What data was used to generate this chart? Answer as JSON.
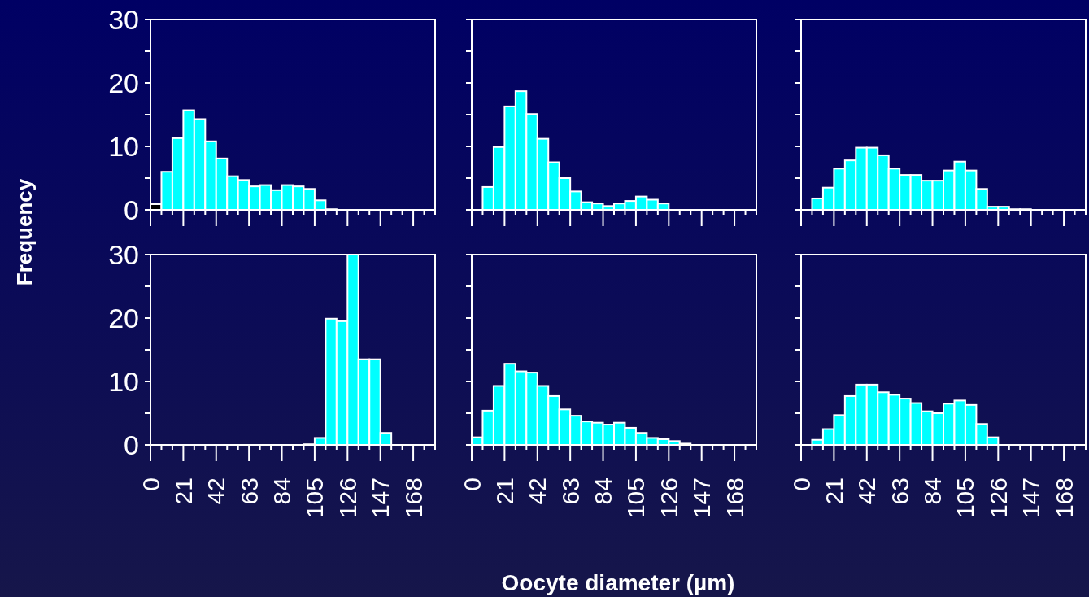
{
  "chart_data": [
    {
      "type": "histogram",
      "ylabel": "Frequency",
      "bins": [
        0,
        7,
        14,
        21,
        28,
        35,
        42,
        49,
        56,
        63,
        70,
        77,
        84,
        91,
        98,
        105,
        112,
        119,
        126,
        133,
        140,
        147,
        154,
        161,
        168,
        175,
        182
      ],
      "values": [
        0.9,
        6.0,
        11.3,
        15.7,
        14.3,
        10.8,
        8.1,
        5.3,
        4.7,
        3.7,
        3.9,
        3.1,
        3.9,
        3.7,
        3.3,
        1.5,
        0.1,
        0,
        0,
        0,
        0,
        0,
        0,
        0,
        0,
        0
      ],
      "colors": [
        "#000000",
        "#00ffff",
        "#00ffff",
        "#00ffff",
        "#00ffff",
        "#00ffff",
        "#00ffff",
        "#00ffff",
        "#00ffff",
        "#00ffff",
        "#00ffff",
        "#00ffff",
        "#00ffff",
        "#00ffff",
        "#00ffff",
        "#00ffff",
        "#00ffff",
        "#00ffff",
        "#00ffff",
        "#00ffff",
        "#00ffff",
        "#00ffff",
        "#00ffff",
        "#00ffff",
        "#00ffff",
        "#00ffff"
      ],
      "xlim": [
        0,
        182
      ],
      "xticks": [
        0,
        {
          "value": 7,
          "label": null
        },
        {
          "value": 14,
          "label": null
        },
        21,
        {
          "value": 28,
          "label": null
        },
        {
          "value": 35,
          "label": null
        },
        42,
        {
          "value": 49,
          "label": null
        },
        {
          "value": 56,
          "label": null
        },
        63,
        {
          "value": 70,
          "label": null
        },
        {
          "value": 77,
          "label": null
        },
        84,
        {
          "value": 91,
          "label": null
        },
        {
          "value": 98,
          "label": null
        },
        105,
        {
          "value": 112,
          "label": null
        },
        {
          "value": 119,
          "label": null
        },
        126,
        {
          "value": 133,
          "label": null
        },
        {
          "value": 140,
          "label": null
        },
        147,
        {
          "value": 154,
          "label": null
        },
        {
          "value": 161,
          "label": null
        },
        168,
        {
          "value": 175,
          "label": null
        },
        {
          "value": 182,
          "label": null
        }
      ],
      "ylim": [
        0,
        30
      ],
      "yticks": [
        0,
        {
          "value": 5,
          "label": null
        },
        10,
        {
          "value": 15,
          "label": null
        },
        20,
        {
          "value": 25,
          "label": null
        },
        30
      ],
      "tick_labels": "y"
    },
    {
      "type": "histogram",
      "bins": [
        0,
        7,
        14,
        21,
        28,
        35,
        42,
        49,
        56,
        63,
        70,
        77,
        84,
        91,
        98,
        105,
        112,
        119,
        126,
        133,
        140,
        147,
        154,
        161,
        168,
        175,
        182
      ],
      "values": [
        0,
        3.6,
        9.9,
        16.3,
        18.7,
        15.1,
        11.2,
        7.5,
        5.0,
        2.9,
        1.2,
        1.0,
        0.6,
        1.0,
        1.4,
        2.1,
        1.6,
        1.0,
        0,
        0,
        0,
        0,
        0,
        0,
        0,
        0
      ],
      "color": "#00ffff",
      "xlim": [
        0,
        182
      ],
      "xticks": [
        0,
        {
          "value": 7,
          "label": null
        },
        {
          "value": 14,
          "label": null
        },
        21,
        {
          "value": 28,
          "label": null
        },
        {
          "value": 35,
          "label": null
        },
        42,
        {
          "value": 49,
          "label": null
        },
        {
          "value": 56,
          "label": null
        },
        63,
        {
          "value": 70,
          "label": null
        },
        {
          "value": 77,
          "label": null
        },
        84,
        {
          "value": 91,
          "label": null
        },
        {
          "value": 98,
          "label": null
        },
        105,
        {
          "value": 112,
          "label": null
        },
        {
          "value": 119,
          "label": null
        },
        126,
        {
          "value": 133,
          "label": null
        },
        {
          "value": 140,
          "label": null
        },
        147,
        {
          "value": 154,
          "label": null
        },
        {
          "value": 161,
          "label": null
        },
        168,
        {
          "value": 175,
          "label": null
        },
        {
          "value": 182,
          "label": null
        }
      ],
      "ylim": [
        0,
        30
      ],
      "yticks": [
        0,
        {
          "value": 5,
          "label": null
        },
        10,
        {
          "value": 15,
          "label": null
        },
        20,
        {
          "value": 25,
          "label": null
        },
        30
      ],
      "tick_labels": false
    },
    {
      "type": "histogram",
      "bins": [
        0,
        7,
        14,
        21,
        28,
        35,
        42,
        49,
        56,
        63,
        70,
        77,
        84,
        91,
        98,
        105,
        112,
        119,
        126,
        133,
        140,
        147,
        154,
        161,
        168,
        175,
        182
      ],
      "values": [
        0,
        1.8,
        3.5,
        6.5,
        7.8,
        9.8,
        9.8,
        8.6,
        6.5,
        5.5,
        5.5,
        4.6,
        4.6,
        6.2,
        7.6,
        6.2,
        3.3,
        0.5,
        0.5,
        0.1,
        0.1,
        0,
        0,
        0,
        0,
        0
      ],
      "color": "#00ffff",
      "xlim": [
        0,
        182
      ],
      "xticks": [
        0,
        {
          "value": 7,
          "label": null
        },
        {
          "value": 14,
          "label": null
        },
        21,
        {
          "value": 28,
          "label": null
        },
        {
          "value": 35,
          "label": null
        },
        42,
        {
          "value": 49,
          "label": null
        },
        {
          "value": 56,
          "label": null
        },
        63,
        {
          "value": 70,
          "label": null
        },
        {
          "value": 77,
          "label": null
        },
        84,
        {
          "value": 91,
          "label": null
        },
        {
          "value": 98,
          "label": null
        },
        105,
        {
          "value": 112,
          "label": null
        },
        {
          "value": 119,
          "label": null
        },
        126,
        {
          "value": 133,
          "label": null
        },
        {
          "value": 140,
          "label": null
        },
        147,
        {
          "value": 154,
          "label": null
        },
        {
          "value": 161,
          "label": null
        },
        168,
        {
          "value": 175,
          "label": null
        },
        {
          "value": 182,
          "label": null
        }
      ],
      "ylim": [
        0,
        30
      ],
      "yticks": [
        0,
        {
          "value": 5,
          "label": null
        },
        10,
        {
          "value": 15,
          "label": null
        },
        20,
        {
          "value": 25,
          "label": null
        },
        30
      ],
      "tick_labels": false
    },
    {
      "type": "histogram",
      "bins": [
        0,
        7,
        14,
        21,
        28,
        35,
        42,
        49,
        56,
        63,
        70,
        77,
        84,
        91,
        98,
        105,
        112,
        119,
        126,
        133,
        140,
        147,
        154,
        161,
        168,
        175,
        182
      ],
      "values": [
        0,
        0,
        0,
        0,
        0,
        0,
        0,
        0,
        0,
        0,
        0,
        0,
        0,
        0,
        0.1,
        1.1,
        19.9,
        19.5,
        30,
        13.5,
        13.5,
        1.9,
        0,
        0,
        0,
        0
      ],
      "color": "#00ffff",
      "xlim": [
        0,
        182
      ],
      "xticks": [
        0,
        {
          "value": 7,
          "label": null
        },
        {
          "value": 14,
          "label": null
        },
        21,
        {
          "value": 28,
          "label": null
        },
        {
          "value": 35,
          "label": null
        },
        42,
        {
          "value": 49,
          "label": null
        },
        {
          "value": 56,
          "label": null
        },
        63,
        {
          "value": 70,
          "label": null
        },
        {
          "value": 77,
          "label": null
        },
        84,
        {
          "value": 91,
          "label": null
        },
        {
          "value": 98,
          "label": null
        },
        105,
        {
          "value": 112,
          "label": null
        },
        {
          "value": 119,
          "label": null
        },
        126,
        {
          "value": 133,
          "label": null
        },
        {
          "value": 140,
          "label": null
        },
        147,
        {
          "value": 154,
          "label": null
        },
        {
          "value": 161,
          "label": null
        },
        168,
        {
          "value": 175,
          "label": null
        },
        {
          "value": 182,
          "label": null
        }
      ],
      "ylim": [
        0,
        30
      ],
      "yticks": [
        0,
        {
          "value": 5,
          "label": null
        },
        10,
        {
          "value": 15,
          "label": null
        },
        20,
        {
          "value": 25,
          "label": null
        },
        30
      ]
    },
    {
      "type": "histogram",
      "xlabel": "Oocyte diameter (µm)",
      "bins": [
        0,
        7,
        14,
        21,
        28,
        35,
        42,
        49,
        56,
        63,
        70,
        77,
        84,
        91,
        98,
        105,
        112,
        119,
        126,
        133,
        140,
        147,
        154,
        161,
        168,
        175,
        182
      ],
      "values": [
        1.2,
        5.4,
        9.3,
        12.8,
        11.6,
        11.4,
        9.3,
        7.7,
        5.6,
        4.6,
        3.7,
        3.5,
        3.2,
        3.5,
        2.7,
        1.9,
        1.1,
        0.9,
        0.6,
        0.2,
        0,
        0,
        0,
        0,
        0,
        0
      ],
      "color": "#00ffff",
      "xlim": [
        0,
        182
      ],
      "xticks": [
        0,
        {
          "value": 7,
          "label": null
        },
        {
          "value": 14,
          "label": null
        },
        21,
        {
          "value": 28,
          "label": null
        },
        {
          "value": 35,
          "label": null
        },
        42,
        {
          "value": 49,
          "label": null
        },
        {
          "value": 56,
          "label": null
        },
        63,
        {
          "value": 70,
          "label": null
        },
        {
          "value": 77,
          "label": null
        },
        84,
        {
          "value": 91,
          "label": null
        },
        {
          "value": 98,
          "label": null
        },
        105,
        {
          "value": 112,
          "label": null
        },
        {
          "value": 119,
          "label": null
        },
        126,
        {
          "value": 133,
          "label": null
        },
        {
          "value": 140,
          "label": null
        },
        147,
        {
          "value": 154,
          "label": null
        },
        {
          "value": 161,
          "label": null
        },
        168,
        {
          "value": 175,
          "label": null
        },
        {
          "value": 182,
          "label": null
        }
      ],
      "ylim": [
        0,
        30
      ],
      "yticks": [
        0,
        {
          "value": 5,
          "label": null
        },
        10,
        {
          "value": 15,
          "label": null
        },
        20,
        {
          "value": 25,
          "label": null
        },
        30
      ],
      "tick_labels": "x"
    },
    {
      "type": "histogram",
      "bins": [
        0,
        7,
        14,
        21,
        28,
        35,
        42,
        49,
        56,
        63,
        70,
        77,
        84,
        91,
        98,
        105,
        112,
        119,
        126,
        133,
        140,
        147,
        154,
        161,
        168,
        175,
        182
      ],
      "values": [
        0,
        0.8,
        2.5,
        4.7,
        7.7,
        9.5,
        9.5,
        8.3,
        7.9,
        7.3,
        6.6,
        5.3,
        5.0,
        6.5,
        7.0,
        6.3,
        3.3,
        1.2,
        0,
        0,
        0,
        0,
        0,
        0,
        0,
        0
      ],
      "color": "#00ffff",
      "xlim": [
        0,
        182
      ],
      "xticks": [
        0,
        {
          "value": 7,
          "label": null
        },
        {
          "value": 14,
          "label": null
        },
        21,
        {
          "value": 28,
          "label": null
        },
        {
          "value": 35,
          "label": null
        },
        42,
        {
          "value": 49,
          "label": null
        },
        {
          "value": 56,
          "label": null
        },
        63,
        {
          "value": 70,
          "label": null
        },
        {
          "value": 77,
          "label": null
        },
        84,
        {
          "value": 91,
          "label": null
        },
        {
          "value": 98,
          "label": null
        },
        105,
        {
          "value": 112,
          "label": null
        },
        {
          "value": 119,
          "label": null
        },
        126,
        {
          "value": 133,
          "label": null
        },
        {
          "value": 140,
          "label": null
        },
        147,
        {
          "value": 154,
          "label": null
        },
        {
          "value": 161,
          "label": null
        },
        168,
        {
          "value": 175,
          "label": null
        },
        {
          "value": 182,
          "label": null
        }
      ],
      "ylim": [
        0,
        30
      ],
      "yticks": [
        0,
        {
          "value": 5,
          "label": null
        },
        10,
        {
          "value": 15,
          "label": null
        },
        20,
        {
          "value": 25,
          "label": null
        },
        30
      ],
      "tick_labels": "x"
    }
  ]
}
